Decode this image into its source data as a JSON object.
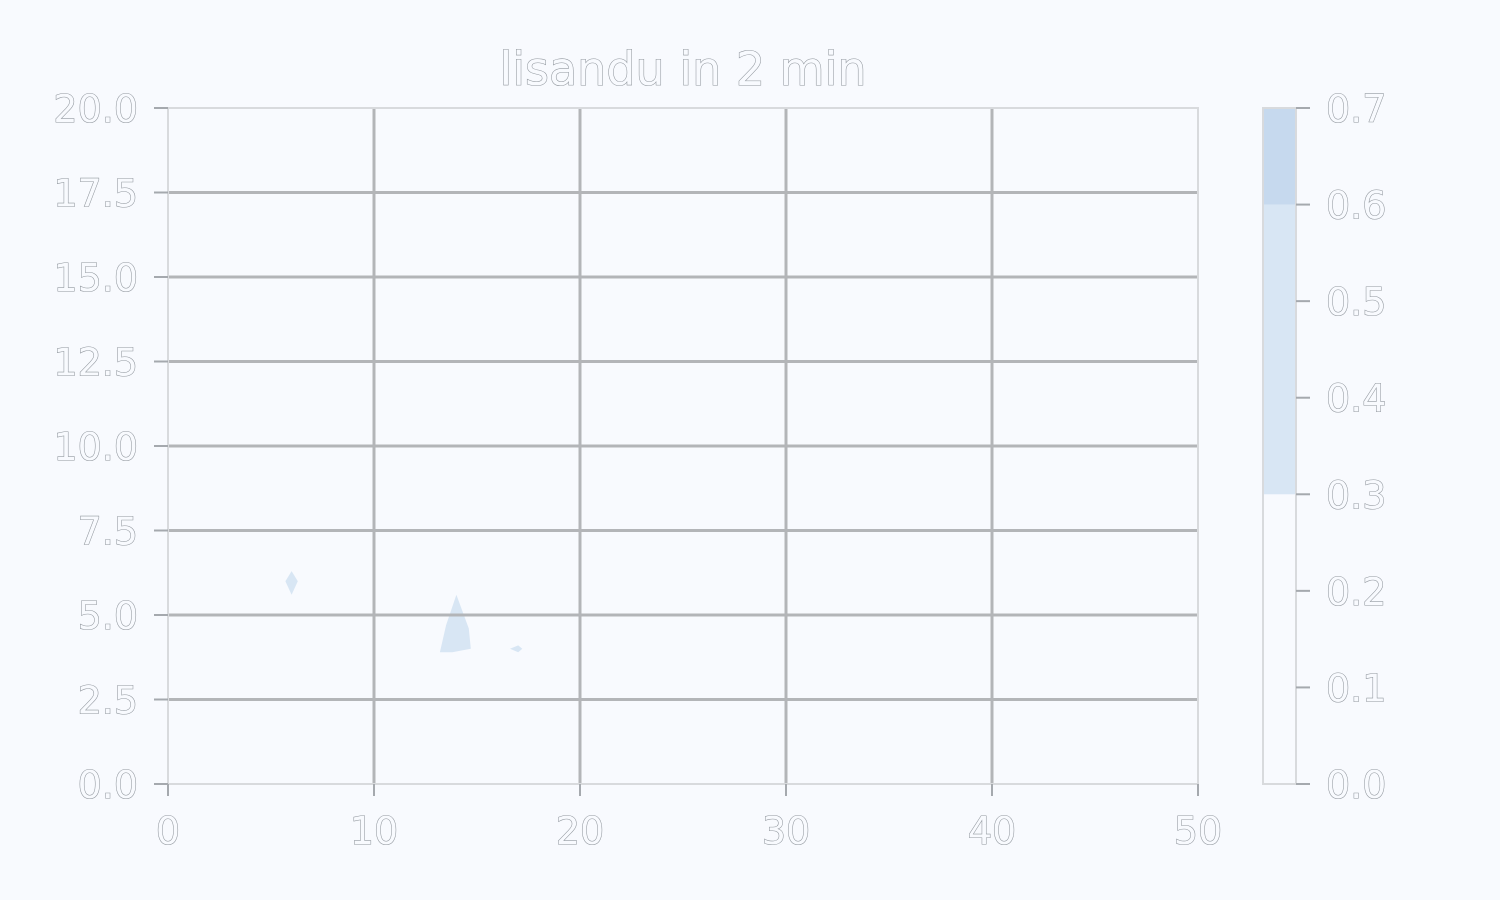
{
  "chart_data": {
    "type": "heatmap",
    "title": "lisandu in 2 min",
    "xlabel": "",
    "ylabel": "",
    "xlim": [
      0,
      50
    ],
    "ylim": [
      0,
      20
    ],
    "grid": true,
    "x_ticks": [
      "0",
      "10",
      "20",
      "30",
      "40",
      "50"
    ],
    "y_ticks": [
      "0.0",
      "2.5",
      "5.0",
      "7.5",
      "10.0",
      "12.5",
      "15.0",
      "17.5",
      "20.0"
    ],
    "colorbar": {
      "range": [
        0,
        0.7
      ],
      "ticks": [
        "0.0",
        "0.1",
        "0.2",
        "0.3",
        "0.4",
        "0.5",
        "0.6",
        "0.7"
      ],
      "levels": [
        {
          "from": 0.0,
          "to": 0.3,
          "color": "#f8fafe"
        },
        {
          "from": 0.3,
          "to": 0.6,
          "color": "#d8e6f4"
        },
        {
          "from": 0.6,
          "to": 0.7,
          "color": "#c6d9ee"
        }
      ]
    },
    "regions": [
      {
        "name": "small diamond",
        "level": 0.3,
        "points": [
          [
            6.0,
            6.3
          ],
          [
            6.3,
            6.0
          ],
          [
            6.0,
            5.6
          ],
          [
            5.7,
            6.0
          ]
        ]
      },
      {
        "name": "main patch",
        "level": 0.3,
        "points": [
          [
            14.0,
            5.6
          ],
          [
            14.6,
            4.6
          ],
          [
            14.7,
            4.0
          ],
          [
            13.8,
            3.9
          ],
          [
            13.2,
            3.9
          ],
          [
            13.5,
            4.7
          ]
        ]
      },
      {
        "name": "tiny sliver",
        "level": 0.3,
        "points": [
          [
            16.6,
            4.0
          ],
          [
            17.0,
            4.1
          ],
          [
            17.2,
            4.0
          ],
          [
            17.0,
            3.9
          ]
        ]
      }
    ]
  }
}
